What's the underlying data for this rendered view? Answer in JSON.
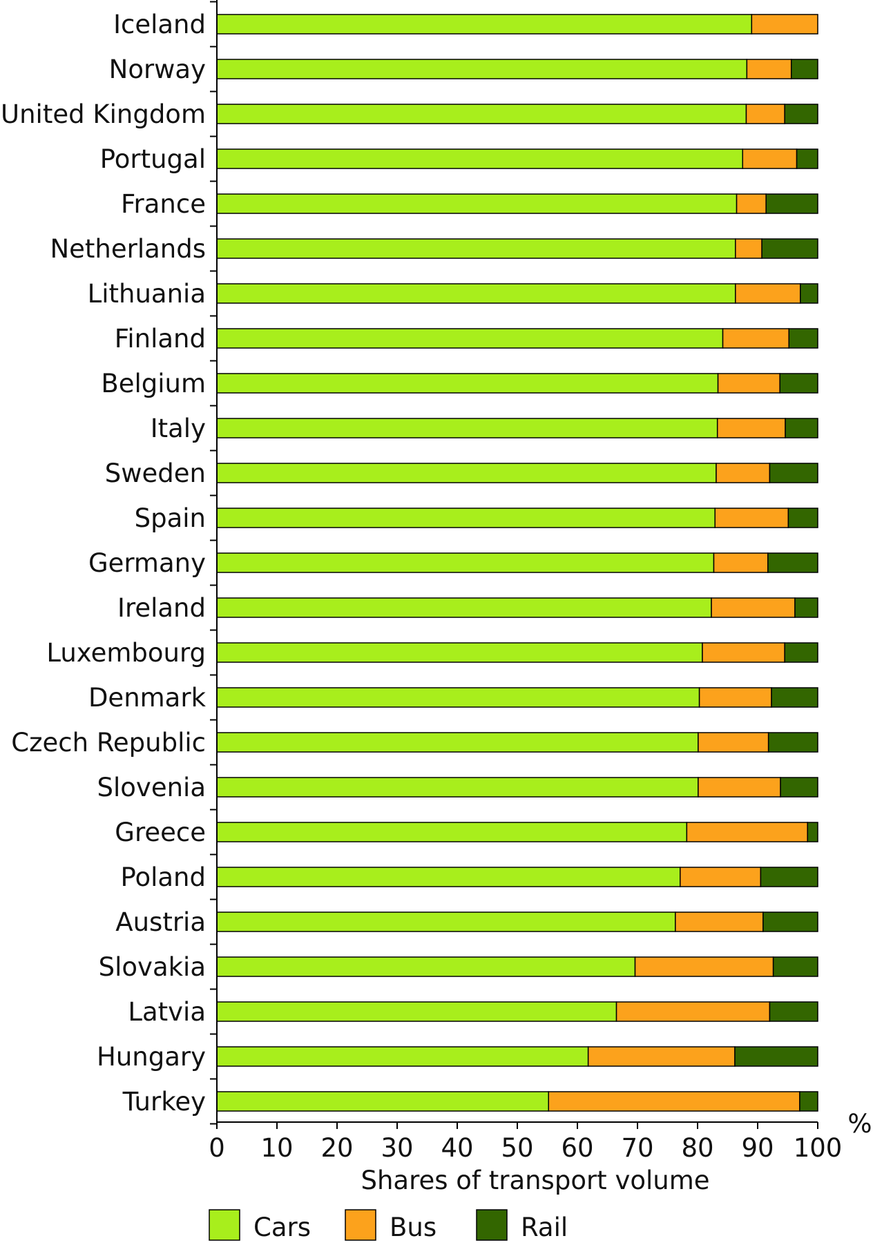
{
  "chart_data": {
    "type": "bar",
    "orientation": "horizontal",
    "stacked": true,
    "title": "",
    "xlabel": "Shares of transport volume",
    "x_unit": "%",
    "xlim": [
      0,
      100
    ],
    "x_ticks": [
      "0",
      "10",
      "20",
      "30",
      "40",
      "50",
      "60",
      "70",
      "80",
      "90",
      "100"
    ],
    "grid": false,
    "legend_position": "bottom",
    "categories": [
      "Iceland",
      "Norway",
      "United Kingdom",
      "Portugal",
      "France",
      "Netherlands",
      "Lithuania",
      "Finland",
      "Belgium",
      "Italy",
      "Sweden",
      "Spain",
      "Germany",
      "Ireland",
      "Luxembourg",
      "Denmark",
      "Czech Republic",
      "Slovenia",
      "Greece",
      "Poland",
      "Austria",
      "Slovakia",
      "Latvia",
      "Hungary",
      "Turkey"
    ],
    "series": [
      {
        "name": "Cars",
        "color": "#a8ee1c",
        "values": [
          89.0,
          88.2,
          88.1,
          87.5,
          86.5,
          86.3,
          86.3,
          84.2,
          83.4,
          83.3,
          83.1,
          82.9,
          82.7,
          82.3,
          80.8,
          80.3,
          80.1,
          80.1,
          78.2,
          77.1,
          76.3,
          69.6,
          66.5,
          61.8,
          55.2
        ]
      },
      {
        "name": "Bus",
        "color": "#fca21c",
        "values": [
          11.0,
          7.4,
          6.4,
          9.0,
          4.9,
          4.4,
          10.8,
          11.0,
          10.3,
          11.3,
          8.9,
          12.2,
          9.0,
          13.9,
          13.7,
          12.0,
          11.7,
          13.7,
          20.1,
          13.4,
          14.6,
          23.0,
          25.5,
          24.4,
          41.8
        ]
      },
      {
        "name": "Rail",
        "color": "#336600",
        "values": [
          0.0,
          4.4,
          5.5,
          3.5,
          8.6,
          9.3,
          2.9,
          4.8,
          6.3,
          5.4,
          8.0,
          4.9,
          8.3,
          3.8,
          5.5,
          7.7,
          8.2,
          6.2,
          1.7,
          9.5,
          9.1,
          7.4,
          8.0,
          13.8,
          3.0
        ]
      }
    ]
  }
}
